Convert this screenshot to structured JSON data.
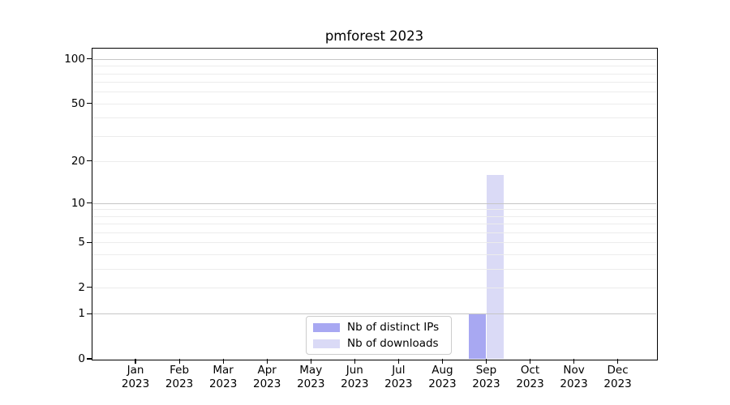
{
  "title": "pmforest 2023",
  "chart_data": {
    "type": "bar",
    "title": "pmforest 2023",
    "categories": [
      "Jan",
      "Feb",
      "Mar",
      "Apr",
      "May",
      "Jun",
      "Jul",
      "Aug",
      "Sep",
      "Oct",
      "Nov",
      "Dec"
    ],
    "year": "2023",
    "series": [
      {
        "name": "Nb of distinct IPs",
        "color": "#a8a8f2",
        "values": [
          0,
          0,
          0,
          0,
          0,
          0,
          0,
          0,
          1,
          0,
          0,
          0
        ]
      },
      {
        "name": "Nb of downloads",
        "color": "#dadaf6",
        "values": [
          0,
          0,
          0,
          0,
          0,
          0,
          0,
          0,
          16,
          0,
          0,
          0
        ]
      }
    ],
    "xlabel": "",
    "ylabel": "",
    "yscale": "log1p",
    "ylim": [
      0,
      119
    ],
    "yticks": [
      0,
      1,
      2,
      5,
      10,
      20,
      50,
      100
    ],
    "major_gridlines": [
      1,
      10,
      100
    ],
    "minor_gridlines": [
      2,
      3,
      4,
      5,
      6,
      7,
      8,
      9,
      20,
      30,
      40,
      50,
      60,
      70,
      80,
      90
    ],
    "grid": true,
    "legend_position": "lower center"
  },
  "colors": {
    "major_grid": "#c6c6c6",
    "minor_grid": "#ececec",
    "axis": "#000000",
    "background": "#ffffff"
  }
}
